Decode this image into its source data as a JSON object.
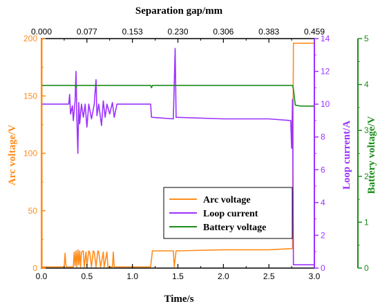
{
  "chart_data": {
    "type": "line",
    "x_axis": {
      "label": "Time/s",
      "range": [
        0.0,
        3.0
      ],
      "ticks": [
        "0.0",
        "0.5",
        "1.0",
        "1.5",
        "2.0",
        "2.5",
        "3.0"
      ]
    },
    "top_axis": {
      "label": "Separation gap/mm",
      "range": [
        0.0,
        0.459
      ],
      "ticks": [
        "0.000",
        "0.077",
        "0.153",
        "0.230",
        "0.306",
        "0.383",
        "0.459"
      ]
    },
    "y_axes": {
      "left": {
        "label": "Arc voltage/V",
        "color": "#ff8c1a",
        "range": [
          0,
          200
        ],
        "ticks": [
          "0",
          "50",
          "100",
          "150",
          "200"
        ]
      },
      "right1": {
        "label": "Loop current/A",
        "color": "#9b30ff",
        "range": [
          0,
          14
        ],
        "ticks": [
          "0",
          "2",
          "4",
          "6",
          "8",
          "10",
          "12",
          "14"
        ]
      },
      "right2": {
        "label": "Battery voltage/V",
        "color": "#1a8c1a",
        "range": [
          0,
          5
        ],
        "ticks": [
          "0",
          "1",
          "2",
          "3",
          "4",
          "5"
        ]
      }
    },
    "series": [
      {
        "name": "Arc voltage",
        "axis": "left",
        "color": "#ff8c1a",
        "points": [
          [
            0.0,
            200
          ],
          [
            0.005,
            200
          ],
          [
            0.006,
            1
          ],
          [
            0.25,
            1
          ],
          [
            0.26,
            13
          ],
          [
            0.27,
            1
          ],
          [
            0.35,
            1
          ],
          [
            0.36,
            14
          ],
          [
            0.37,
            2
          ],
          [
            0.38,
            15
          ],
          [
            0.39,
            1
          ],
          [
            0.4,
            16
          ],
          [
            0.41,
            3
          ],
          [
            0.42,
            15
          ],
          [
            0.43,
            1
          ],
          [
            0.44,
            14
          ],
          [
            0.46,
            15
          ],
          [
            0.47,
            1
          ],
          [
            0.49,
            14
          ],
          [
            0.5,
            2
          ],
          [
            0.52,
            15
          ],
          [
            0.53,
            14
          ],
          [
            0.55,
            1
          ],
          [
            0.57,
            15
          ],
          [
            0.58,
            14
          ],
          [
            0.6,
            1
          ],
          [
            0.62,
            15
          ],
          [
            0.63,
            14
          ],
          [
            0.65,
            1
          ],
          [
            0.68,
            14
          ],
          [
            0.69,
            1
          ],
          [
            0.72,
            14
          ],
          [
            0.73,
            1
          ],
          [
            0.78,
            1
          ],
          [
            0.79,
            14
          ],
          [
            0.8,
            1
          ],
          [
            1.2,
            1
          ],
          [
            1.22,
            15
          ],
          [
            1.45,
            15
          ],
          [
            1.46,
            1
          ],
          [
            1.48,
            15
          ],
          [
            1.5,
            15
          ],
          [
            2.0,
            16
          ],
          [
            2.5,
            16
          ],
          [
            2.75,
            17
          ],
          [
            2.76,
            17
          ],
          [
            2.77,
            196
          ],
          [
            3.0,
            196
          ]
        ]
      },
      {
        "name": "Loop current",
        "axis": "right1",
        "color": "#9b30ff",
        "points": [
          [
            0.0,
            10
          ],
          [
            0.3,
            10
          ],
          [
            0.31,
            10.6
          ],
          [
            0.32,
            9.4
          ],
          [
            0.34,
            9.9
          ],
          [
            0.35,
            9.0
          ],
          [
            0.37,
            10.2
          ],
          [
            0.38,
            12.0
          ],
          [
            0.39,
            9.1
          ],
          [
            0.4,
            7.0
          ],
          [
            0.41,
            10.1
          ],
          [
            0.42,
            8.8
          ],
          [
            0.44,
            10.0
          ],
          [
            0.46,
            9.2
          ],
          [
            0.48,
            10.0
          ],
          [
            0.5,
            8.6
          ],
          [
            0.52,
            10.0
          ],
          [
            0.55,
            9.1
          ],
          [
            0.58,
            10.0
          ],
          [
            0.6,
            11.5
          ],
          [
            0.61,
            9.3
          ],
          [
            0.63,
            10.0
          ],
          [
            0.66,
            8.7
          ],
          [
            0.68,
            10.2
          ],
          [
            0.7,
            9.2
          ],
          [
            0.72,
            10.0
          ],
          [
            0.75,
            9.4
          ],
          [
            0.78,
            10.1
          ],
          [
            0.8,
            9.2
          ],
          [
            0.83,
            10.0
          ],
          [
            1.2,
            10.0
          ],
          [
            1.21,
            9.2
          ],
          [
            1.45,
            9.1
          ],
          [
            1.47,
            13.4
          ],
          [
            1.48,
            9.2
          ],
          [
            2.0,
            9.1
          ],
          [
            2.5,
            9.1
          ],
          [
            2.74,
            9.0
          ],
          [
            2.75,
            7.3
          ],
          [
            2.76,
            10.3
          ],
          [
            2.77,
            0.2
          ],
          [
            3.0,
            0.2
          ]
        ]
      },
      {
        "name": "Battery voltage",
        "axis": "right2",
        "color": "#1a8c1a",
        "points": [
          [
            0.0,
            3.98
          ],
          [
            0.37,
            3.98
          ],
          [
            0.38,
            3.93
          ],
          [
            0.39,
            3.98
          ],
          [
            1.2,
            3.98
          ],
          [
            1.21,
            3.93
          ],
          [
            1.22,
            3.98
          ],
          [
            2.76,
            3.98
          ],
          [
            2.77,
            3.9
          ],
          [
            2.79,
            3.55
          ],
          [
            2.85,
            3.53
          ],
          [
            3.0,
            3.53
          ]
        ]
      }
    ],
    "legend": {
      "placement": "lower-center",
      "entries": [
        "Arc voltage",
        "Loop current",
        "Battery voltage"
      ]
    },
    "grid": false
  }
}
